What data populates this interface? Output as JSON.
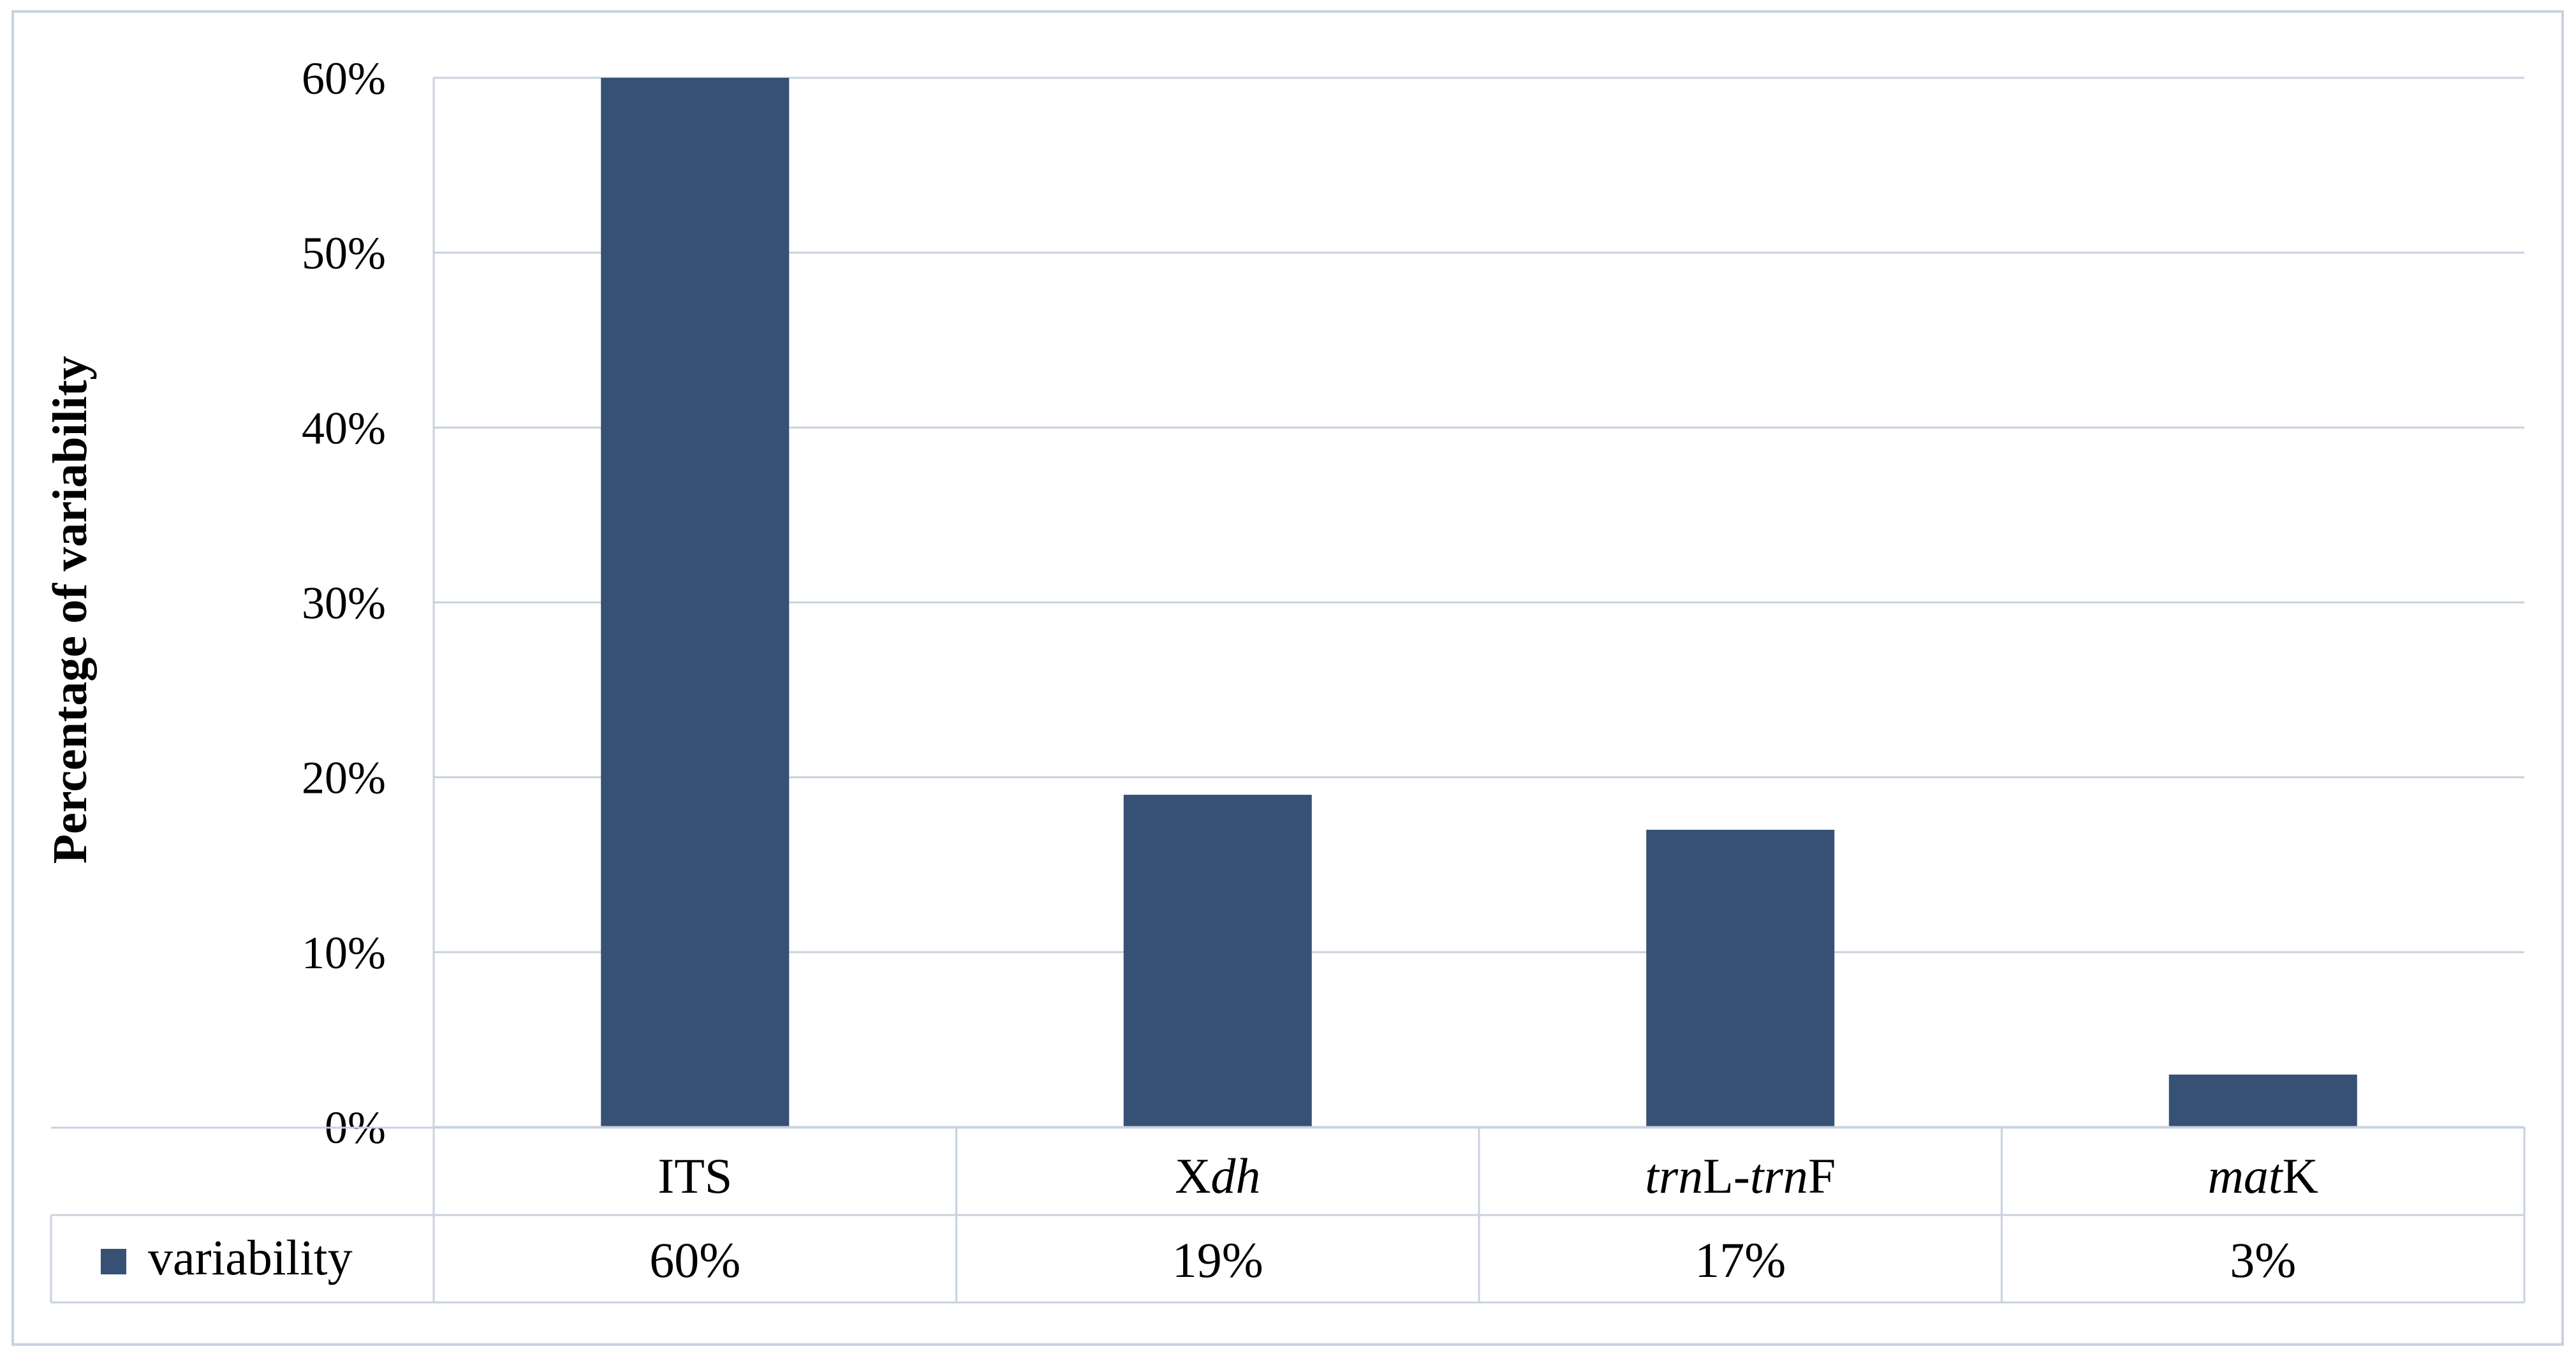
{
  "chart_data": {
    "type": "bar",
    "title": "",
    "xlabel": "",
    "ylabel": "Percentage of variability",
    "ylim": [
      0,
      0.6
    ],
    "yticks": [
      "0%",
      "10%",
      "20%",
      "30%",
      "40%",
      "50%",
      "60%"
    ],
    "grid": true,
    "categories": [
      {
        "label": "ITS",
        "parts": [
          {
            "t": "ITS",
            "i": false
          }
        ]
      },
      {
        "label": "Xdh",
        "parts": [
          {
            "t": "X",
            "i": false
          },
          {
            "t": "dh",
            "i": true
          }
        ]
      },
      {
        "label": "trnL-trnF",
        "parts": [
          {
            "t": "trn",
            "i": true
          },
          {
            "t": "L-",
            "i": false
          },
          {
            "t": "trn",
            "i": true
          },
          {
            "t": "F",
            "i": false
          }
        ]
      },
      {
        "label": "matK",
        "parts": [
          {
            "t": "mat",
            "i": true
          },
          {
            "t": "K",
            "i": false
          }
        ]
      }
    ],
    "series": [
      {
        "name": "variability",
        "values": [
          0.6,
          0.19,
          0.17,
          0.03
        ],
        "data_labels": [
          "60%",
          "19%",
          "17%",
          "3%"
        ],
        "color": "#365173"
      }
    ],
    "legend": "data-table"
  }
}
